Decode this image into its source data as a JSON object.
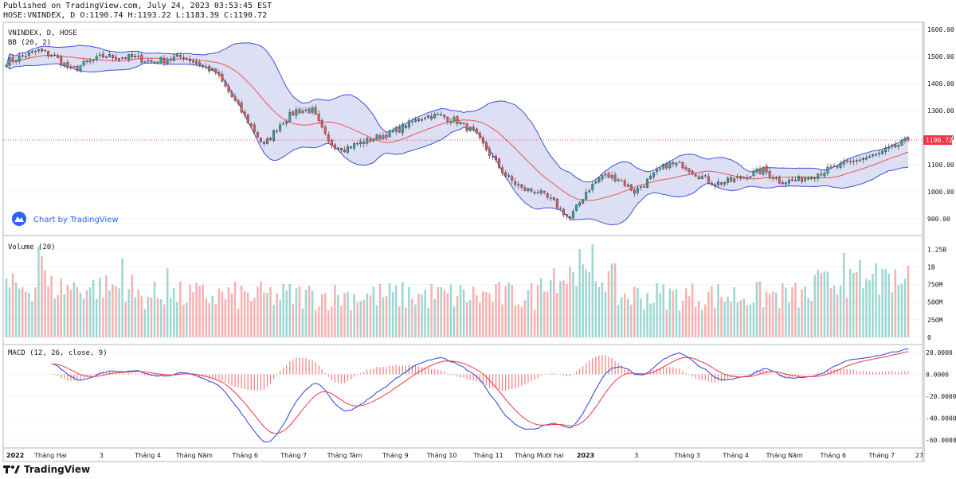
{
  "header": {
    "published": "Published on TradingView.com, July 24, 2023 03:53:45 EST",
    "ohlc": "HOSE:VNINDEX, D O:1190.74 H:1193.22 L:1183.39 C:1190.72"
  },
  "footer": {
    "brand": "TradingView"
  },
  "watermark": {
    "text": "Chart by TradingView"
  },
  "colors": {
    "up": "#26a69a",
    "down": "#ef5350",
    "bb_fill": "#d1d4f0",
    "bb_band": "#3f51d6",
    "bb_basis": "#ef5350",
    "macd": "#2b3fe0",
    "signal": "#f23645",
    "hist_up": "#26a69a",
    "hist_down": "#ef5350",
    "last_price": "#f23645"
  },
  "chart_data": [
    {
      "type": "candlestick",
      "title": "VNINDEX, D, HOSE",
      "indicator_label": "BB (20, 2)",
      "last_price": 1190.72,
      "last_price_label": "1190.72",
      "ylim": [
        850,
        1620
      ],
      "y_ticks": [
        1600,
        1500,
        1400,
        1300,
        1200,
        1100,
        1000,
        900
      ],
      "y_tick_labels": [
        "1600.00",
        "1500.00",
        "1400.00",
        "1300.00",
        "1200.00",
        "1100.00",
        "1000.00",
        "900.00"
      ],
      "close_path_anchors": [
        [
          0,
          1480
        ],
        [
          10,
          1520
        ],
        [
          15,
          1500
        ],
        [
          20,
          1450
        ],
        [
          30,
          1500
        ],
        [
          40,
          1495
        ],
        [
          45,
          1480
        ],
        [
          50,
          1490
        ],
        [
          55,
          1500
        ],
        [
          60,
          1470
        ],
        [
          65,
          1440
        ],
        [
          70,
          1350
        ],
        [
          75,
          1260
        ],
        [
          80,
          1170
        ],
        [
          85,
          1250
        ],
        [
          90,
          1300
        ],
        [
          95,
          1300
        ],
        [
          100,
          1180
        ],
        [
          105,
          1160
        ],
        [
          110,
          1180
        ],
        [
          115,
          1200
        ],
        [
          120,
          1220
        ],
        [
          125,
          1250
        ],
        [
          130,
          1280
        ],
        [
          135,
          1280
        ],
        [
          140,
          1260
        ],
        [
          145,
          1220
        ],
        [
          150,
          1140
        ],
        [
          155,
          1060
        ],
        [
          160,
          1010
        ],
        [
          165,
          1000
        ],
        [
          170,
          960
        ],
        [
          175,
          900
        ],
        [
          180,
          1000
        ],
        [
          185,
          1060
        ],
        [
          190,
          1050
        ],
        [
          195,
          1000
        ],
        [
          200,
          1050
        ],
        [
          205,
          1100
        ],
        [
          210,
          1100
        ],
        [
          215,
          1060
        ],
        [
          220,
          1030
        ],
        [
          225,
          1040
        ],
        [
          230,
          1060
        ],
        [
          235,
          1080
        ],
        [
          240,
          1040
        ],
        [
          245,
          1040
        ],
        [
          250,
          1060
        ],
        [
          255,
          1080
        ],
        [
          260,
          1100
        ],
        [
          265,
          1120
        ],
        [
          270,
          1135
        ],
        [
          275,
          1160
        ],
        [
          280,
          1190.72
        ]
      ]
    },
    {
      "type": "bar",
      "title": "Volume (20)",
      "ylim": [
        0,
        1400000000
      ],
      "y_ticks": [
        0,
        250000000,
        500000000,
        750000000,
        1000000000,
        1250000000
      ],
      "y_tick_labels": [
        "0",
        "250M",
        "500M",
        "750M",
        "1B",
        "1.25B"
      ]
    },
    {
      "type": "line",
      "title": "MACD (12, 26, close, 9)",
      "series": [
        {
          "name": "MACD"
        },
        {
          "name": "Signal"
        },
        {
          "name": "Histogram"
        }
      ],
      "ylim": [
        -65,
        25
      ],
      "y_ticks": [
        20,
        0,
        -20,
        -40,
        -60
      ],
      "y_tick_labels": [
        "20.0000",
        "0.0000",
        "-20.0000",
        "-40.0000",
        "-60.0000"
      ]
    }
  ],
  "x_axis": {
    "labels": [
      "2022",
      "Tháng Hai",
      "3",
      "Tháng 4",
      "Tháng Năm",
      "Tháng 6",
      "Tháng 7",
      "Tháng Tám",
      "Tháng 9",
      "Tháng 10",
      "Tháng 11",
      "Tháng Mười hai",
      "2023",
      "3",
      "Tháng 3",
      "Tháng 4",
      "Tháng Năm",
      "Tháng 6",
      "Tháng 7",
      "27"
    ],
    "bold": [
      true,
      false,
      false,
      false,
      false,
      false,
      false,
      false,
      false,
      false,
      false,
      false,
      true,
      false,
      false,
      false,
      false,
      false,
      false,
      false
    ]
  }
}
